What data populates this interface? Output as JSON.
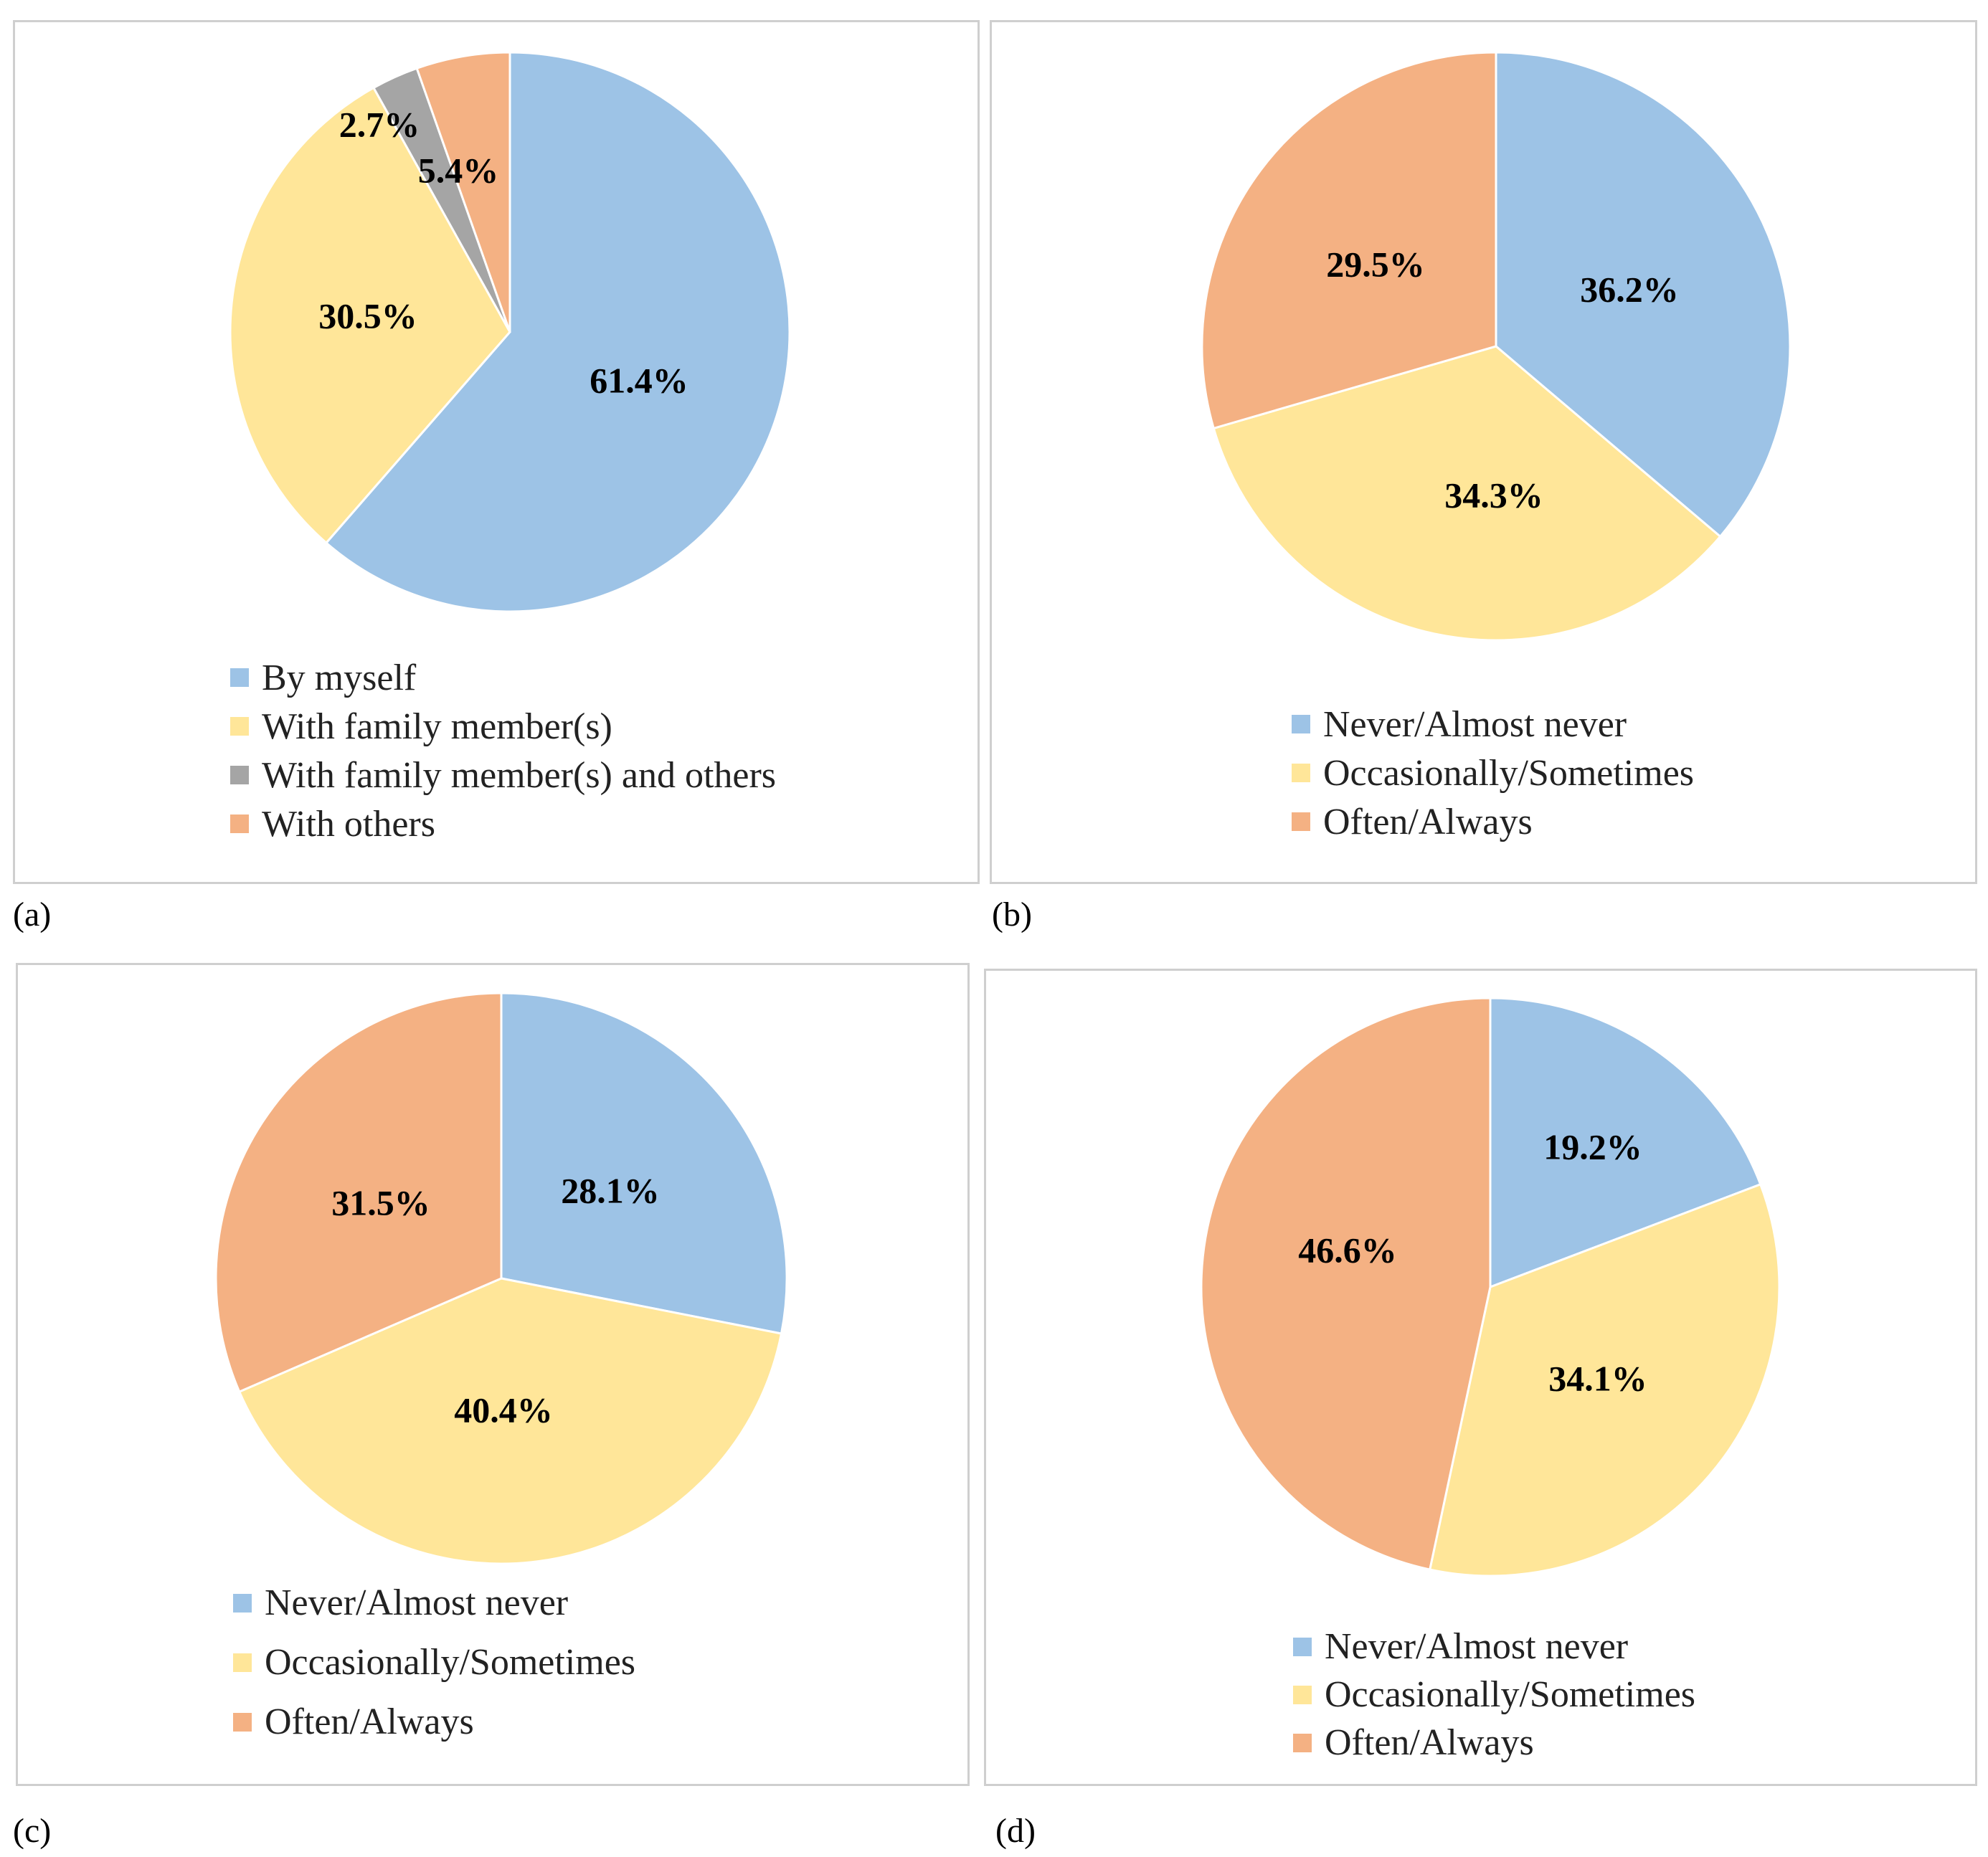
{
  "colors": {
    "blue": "#9DC3E6",
    "yellow": "#FFE699",
    "gray": "#A5A5A5",
    "orange": "#F4B183"
  },
  "chart_data": [
    {
      "type": "pie",
      "caption": "(a)",
      "labels": [
        "By myself",
        "With family member(s)",
        "With family member(s) and others",
        "With others"
      ],
      "values": [
        61.4,
        30.5,
        2.7,
        5.4
      ],
      "data_labels": [
        "61.4%",
        "30.5%",
        "2.7%",
        "5.4%"
      ],
      "colors": [
        "#9DC3E6",
        "#FFE699",
        "#A5A5A5",
        "#F4B183"
      ],
      "legend_position": "bottom"
    },
    {
      "type": "pie",
      "caption": "(b)",
      "labels": [
        "Never/Almost never",
        "Occasionally/Sometimes",
        "Often/Always"
      ],
      "values": [
        36.2,
        34.3,
        29.5
      ],
      "data_labels": [
        "36.2%",
        "34.3%",
        "29.5%"
      ],
      "colors": [
        "#9DC3E6",
        "#FFE699",
        "#F4B183"
      ],
      "legend_position": "bottom"
    },
    {
      "type": "pie",
      "caption": "(c)",
      "labels": [
        "Never/Almost never",
        "Occasionally/Sometimes",
        "Often/Always"
      ],
      "values": [
        28.1,
        40.4,
        31.5
      ],
      "data_labels": [
        "28.1%",
        "40.4%",
        "31.5%"
      ],
      "colors": [
        "#9DC3E6",
        "#FFE699",
        "#F4B183"
      ],
      "legend_position": "bottom"
    },
    {
      "type": "pie",
      "caption": "(d)",
      "labels": [
        "Never/Almost never",
        "Occasionally/Sometimes",
        "Often/Always"
      ],
      "values": [
        19.2,
        34.1,
        46.6
      ],
      "data_labels": [
        "19.2%",
        "34.1%",
        "46.6%"
      ],
      "colors": [
        "#9DC3E6",
        "#FFE699",
        "#F4B183"
      ],
      "legend_position": "bottom"
    }
  ]
}
